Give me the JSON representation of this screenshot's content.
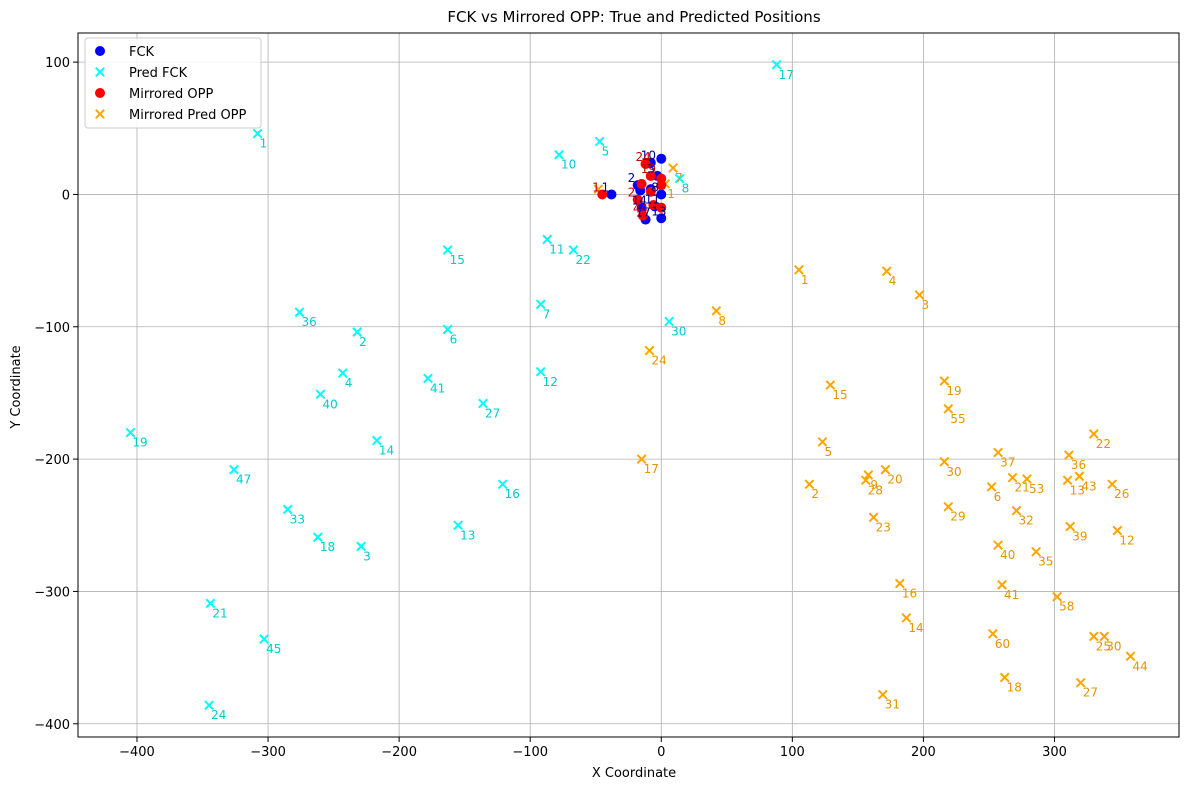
{
  "chart_data": {
    "type": "scatter",
    "title": "FCK vs Mirrored OPP: True and Predicted Positions",
    "xlabel": "X Coordinate",
    "ylabel": "Y Coordinate",
    "xlim": [
      -445,
      395
    ],
    "ylim": [
      -410,
      122
    ],
    "xticks": [
      -400,
      -300,
      -200,
      -100,
      0,
      100,
      200,
      300
    ],
    "yticks": [
      -400,
      -300,
      -200,
      -100,
      0,
      100
    ],
    "grid": true,
    "legend_position": "top-left",
    "series": [
      {
        "name": "FCK",
        "marker": "circle",
        "color": "#0000ff",
        "label_color": "#00008b",
        "points": [
          {
            "x": -38,
            "y": 0,
            "label": "1"
          },
          {
            "x": -15,
            "y": -10,
            "label": "14"
          },
          {
            "x": -12,
            "y": -19,
            "label": "17"
          },
          {
            "x": 0,
            "y": -18,
            "label": "13"
          },
          {
            "x": -18,
            "y": 7,
            "label": "2"
          },
          {
            "x": -8,
            "y": 24,
            "label": "10"
          },
          {
            "x": 0,
            "y": 27,
            "label": ""
          },
          {
            "x": -3,
            "y": 14,
            "label": "5"
          },
          {
            "x": 0,
            "y": 0,
            "label": "8"
          },
          {
            "x": -8,
            "y": 4,
            "label": ""
          },
          {
            "x": -5,
            "y": -9,
            "label": "11"
          },
          {
            "x": -16,
            "y": 3,
            "label": ""
          }
        ]
      },
      {
        "name": "Pred FCK",
        "marker": "x",
        "color": "#00ffff",
        "label_color": "#00cccc",
        "points": [
          {
            "x": -308,
            "y": 46,
            "label": "1"
          },
          {
            "x": 88,
            "y": 98,
            "label": "17"
          },
          {
            "x": -47,
            "y": 40,
            "label": "5"
          },
          {
            "x": -78,
            "y": 30,
            "label": "10"
          },
          {
            "x": 14,
            "y": 12,
            "label": "8"
          },
          {
            "x": -87,
            "y": -34,
            "label": "11"
          },
          {
            "x": -67,
            "y": -42,
            "label": "22"
          },
          {
            "x": -163,
            "y": -42,
            "label": "15"
          },
          {
            "x": -92,
            "y": -83,
            "label": "7"
          },
          {
            "x": 6,
            "y": -96,
            "label": "30"
          },
          {
            "x": -276,
            "y": -89,
            "label": "36"
          },
          {
            "x": -232,
            "y": -104,
            "label": "2"
          },
          {
            "x": -163,
            "y": -102,
            "label": "6"
          },
          {
            "x": -92,
            "y": -134,
            "label": "12"
          },
          {
            "x": -243,
            "y": -135,
            "label": "4"
          },
          {
            "x": -178,
            "y": -139,
            "label": "41"
          },
          {
            "x": -260,
            "y": -151,
            "label": "40"
          },
          {
            "x": -136,
            "y": -158,
            "label": "27"
          },
          {
            "x": -217,
            "y": -186,
            "label": "14"
          },
          {
            "x": -405,
            "y": -180,
            "label": "19"
          },
          {
            "x": -326,
            "y": -208,
            "label": "47"
          },
          {
            "x": -121,
            "y": -219,
            "label": "16"
          },
          {
            "x": -285,
            "y": -238,
            "label": "33"
          },
          {
            "x": -155,
            "y": -250,
            "label": "13"
          },
          {
            "x": -262,
            "y": -259,
            "label": "18"
          },
          {
            "x": -229,
            "y": -266,
            "label": "3"
          },
          {
            "x": -344,
            "y": -309,
            "label": "21"
          },
          {
            "x": -303,
            "y": -336,
            "label": "45"
          },
          {
            "x": -345,
            "y": -386,
            "label": "24"
          }
        ]
      },
      {
        "name": "Mirrored OPP",
        "marker": "circle",
        "color": "#ff0000",
        "label_color": "#cc0000",
        "points": [
          {
            "x": -45,
            "y": 0,
            "label": "1"
          },
          {
            "x": -12,
            "y": 23,
            "label": "24"
          },
          {
            "x": -15,
            "y": 8,
            "label": ""
          },
          {
            "x": -8,
            "y": 14,
            "label": "19"
          },
          {
            "x": 0,
            "y": 12,
            "label": ""
          },
          {
            "x": 0,
            "y": 7,
            "label": ""
          },
          {
            "x": -18,
            "y": -4,
            "label": "2"
          },
          {
            "x": -6,
            "y": -8,
            "label": ""
          },
          {
            "x": 0,
            "y": -10,
            "label": ""
          },
          {
            "x": -14,
            "y": -16,
            "label": "44"
          },
          {
            "x": -8,
            "y": 2,
            "label": ""
          }
        ]
      },
      {
        "name": "Mirrored Pred OPP",
        "marker": "x",
        "color": "#ffa500",
        "label_color": "#e69500",
        "points": [
          {
            "x": -48,
            "y": 4,
            "label": ""
          },
          {
            "x": 9,
            "y": 20,
            "label": "7"
          },
          {
            "x": 3,
            "y": 8,
            "label": "1"
          },
          {
            "x": 105,
            "y": -57,
            "label": "1"
          },
          {
            "x": 172,
            "y": -58,
            "label": "4"
          },
          {
            "x": 197,
            "y": -76,
            "label": "3"
          },
          {
            "x": 42,
            "y": -88,
            "label": "8"
          },
          {
            "x": -9,
            "y": -118,
            "label": "24"
          },
          {
            "x": 129,
            "y": -144,
            "label": "15"
          },
          {
            "x": 216,
            "y": -141,
            "label": "19"
          },
          {
            "x": 219,
            "y": -162,
            "label": "55"
          },
          {
            "x": 123,
            "y": -187,
            "label": "5"
          },
          {
            "x": 330,
            "y": -181,
            "label": "22"
          },
          {
            "x": -15,
            "y": -200,
            "label": "17"
          },
          {
            "x": 257,
            "y": -195,
            "label": "37"
          },
          {
            "x": 311,
            "y": -197,
            "label": "36"
          },
          {
            "x": 216,
            "y": -202,
            "label": "30"
          },
          {
            "x": 171,
            "y": -208,
            "label": "20"
          },
          {
            "x": 158,
            "y": -212,
            "label": "9"
          },
          {
            "x": 156,
            "y": -216,
            "label": "28"
          },
          {
            "x": 113,
            "y": -219,
            "label": "2"
          },
          {
            "x": 268,
            "y": -214,
            "label": "21"
          },
          {
            "x": 279,
            "y": -215,
            "label": "53"
          },
          {
            "x": 310,
            "y": -216,
            "label": "13"
          },
          {
            "x": 319,
            "y": -213,
            "label": "43"
          },
          {
            "x": 344,
            "y": -219,
            "label": "26"
          },
          {
            "x": 252,
            "y": -221,
            "label": "6"
          },
          {
            "x": 219,
            "y": -236,
            "label": "29"
          },
          {
            "x": 271,
            "y": -239,
            "label": "32"
          },
          {
            "x": 162,
            "y": -244,
            "label": "23"
          },
          {
            "x": 312,
            "y": -251,
            "label": "39"
          },
          {
            "x": 348,
            "y": -254,
            "label": "12"
          },
          {
            "x": 257,
            "y": -265,
            "label": "40"
          },
          {
            "x": 286,
            "y": -270,
            "label": "35"
          },
          {
            "x": 182,
            "y": -294,
            "label": "16"
          },
          {
            "x": 260,
            "y": -295,
            "label": "41"
          },
          {
            "x": 302,
            "y": -304,
            "label": "58"
          },
          {
            "x": 187,
            "y": -320,
            "label": "14"
          },
          {
            "x": 253,
            "y": -332,
            "label": "60"
          },
          {
            "x": 330,
            "y": -334,
            "label": "25"
          },
          {
            "x": 338,
            "y": -334,
            "label": "30"
          },
          {
            "x": 358,
            "y": -349,
            "label": "44"
          },
          {
            "x": 262,
            "y": -365,
            "label": "18"
          },
          {
            "x": 320,
            "y": -369,
            "label": "27"
          },
          {
            "x": 169,
            "y": -378,
            "label": "31"
          }
        ]
      }
    ]
  }
}
